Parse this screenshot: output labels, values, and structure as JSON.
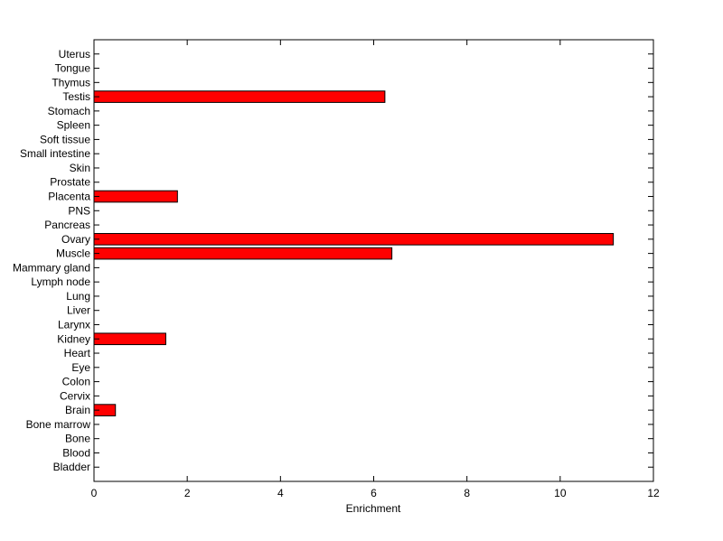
{
  "chart_data": {
    "type": "bar",
    "orientation": "horizontal",
    "title": "",
    "xlabel": "Enrichment",
    "ylabel": "",
    "xlim": [
      0,
      12
    ],
    "xticks": [
      0,
      2,
      4,
      6,
      8,
      10,
      12
    ],
    "grid": false,
    "bar_color": "#ff0000",
    "categories": [
      "Bladder",
      "Blood",
      "Bone",
      "Bone marrow",
      "Brain",
      "Cervix",
      "Colon",
      "Eye",
      "Heart",
      "Kidney",
      "Larynx",
      "Liver",
      "Lung",
      "Lymph node",
      "Mammary gland",
      "Muscle",
      "Ovary",
      "Pancreas",
      "PNS",
      "Placenta",
      "Prostate",
      "Skin",
      "Small intestine",
      "Soft tissue",
      "Spleen",
      "Stomach",
      "Testis",
      "Thymus",
      "Tongue",
      "Uterus"
    ],
    "values": [
      0,
      0,
      0,
      0,
      0.46,
      0,
      0,
      0,
      0,
      1.54,
      0,
      0,
      0,
      0,
      0,
      6.39,
      11.14,
      0,
      0,
      1.79,
      0,
      0,
      0,
      0,
      0,
      0,
      6.24,
      0,
      0,
      0
    ]
  }
}
